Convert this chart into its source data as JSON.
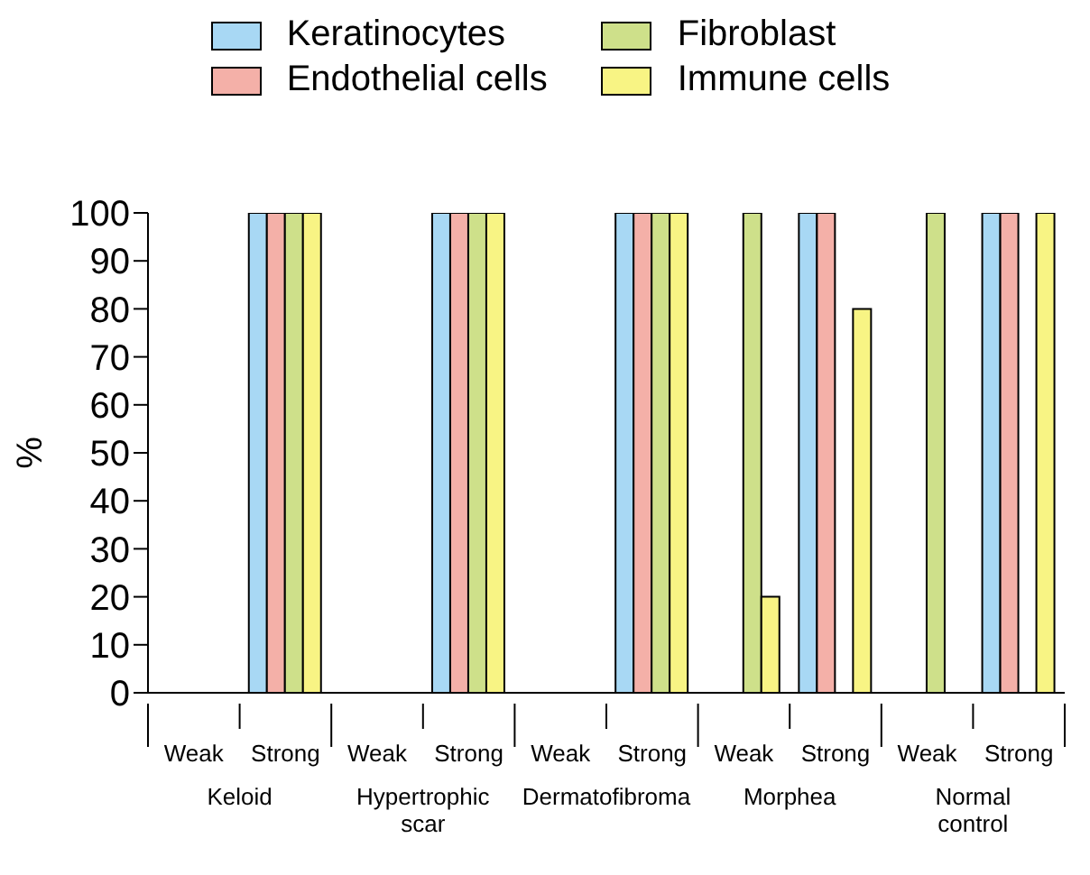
{
  "chart_data": {
    "type": "bar",
    "ylabel": "%",
    "categories": [
      "Weak",
      "Strong",
      "Weak",
      "Strong",
      "Weak",
      "Strong",
      "Weak",
      "Strong",
      "Weak",
      "Strong"
    ],
    "annotations": [
      "Keloid",
      "Hypertrophic scar",
      "Dermatofibroma",
      "Morphea",
      "Normal control"
    ],
    "series": [
      {
        "name": "Keratinocytes",
        "color": "#a8d8f4",
        "values": [
          0,
          100,
          0,
          100,
          0,
          100,
          0,
          100,
          0,
          100
        ]
      },
      {
        "name": "Endothelial cells",
        "color": "#f4b0a8",
        "values": [
          0,
          100,
          0,
          100,
          0,
          100,
          0,
          100,
          0,
          100
        ]
      },
      {
        "name": "Fibroblast",
        "color": "#cee08a",
        "values": [
          0,
          100,
          0,
          100,
          0,
          100,
          100,
          0,
          100,
          0
        ]
      },
      {
        "name": "Immune cells",
        "color": "#f8f484",
        "values": [
          0,
          100,
          0,
          100,
          0,
          100,
          20,
          80,
          0,
          100
        ]
      }
    ],
    "ylim": [
      0,
      100
    ],
    "yticks": [
      0,
      10,
      20,
      30,
      40,
      50,
      60,
      70,
      80,
      90,
      100
    ],
    "grid": false,
    "legend": "top"
  }
}
